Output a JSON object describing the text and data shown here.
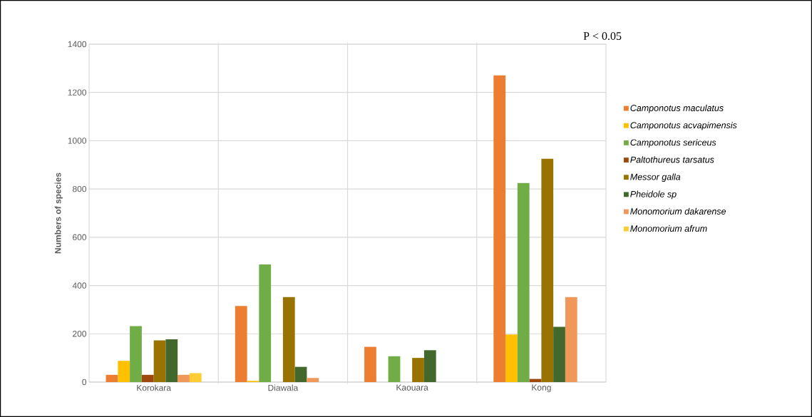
{
  "chart_data": {
    "type": "bar",
    "ylabel": "Numbers of species",
    "categories": [
      "Korokara",
      "Diawala",
      "Kaouara",
      "Kong"
    ],
    "series": [
      {
        "name": "Camponotus maculatus",
        "color": "#ed7d31",
        "values": [
          30,
          315,
          146,
          1271
        ]
      },
      {
        "name": "Camponotus acvapimensis",
        "color": "#ffc000",
        "values": [
          88,
          5,
          0,
          197
        ]
      },
      {
        "name": "Camponotus sericeus",
        "color": "#70ad47",
        "values": [
          232,
          487,
          107,
          825
        ]
      },
      {
        "name": "Paltothureus tarsatus",
        "color": "#9e480e",
        "values": [
          30,
          0,
          0,
          13
        ]
      },
      {
        "name": "Messor galla",
        "color": "#997300",
        "values": [
          173,
          352,
          100,
          925
        ]
      },
      {
        "name": "Pheidole sp",
        "color": "#43682b",
        "values": [
          177,
          63,
          132,
          229
        ]
      },
      {
        "name": "Monomorium dakarense",
        "color": "#f1975a",
        "values": [
          30,
          17,
          0,
          352
        ]
      },
      {
        "name": "Monomorium afrum",
        "color": "#ffcd33",
        "values": [
          37,
          0,
          0,
          0
        ]
      }
    ],
    "ylim": [
      0,
      1400
    ],
    "yticks": [
      0,
      200,
      400,
      600,
      800,
      1000,
      1200,
      1400
    ],
    "grid": true,
    "legend": "right",
    "annotations": [
      "P < 0.05"
    ]
  }
}
